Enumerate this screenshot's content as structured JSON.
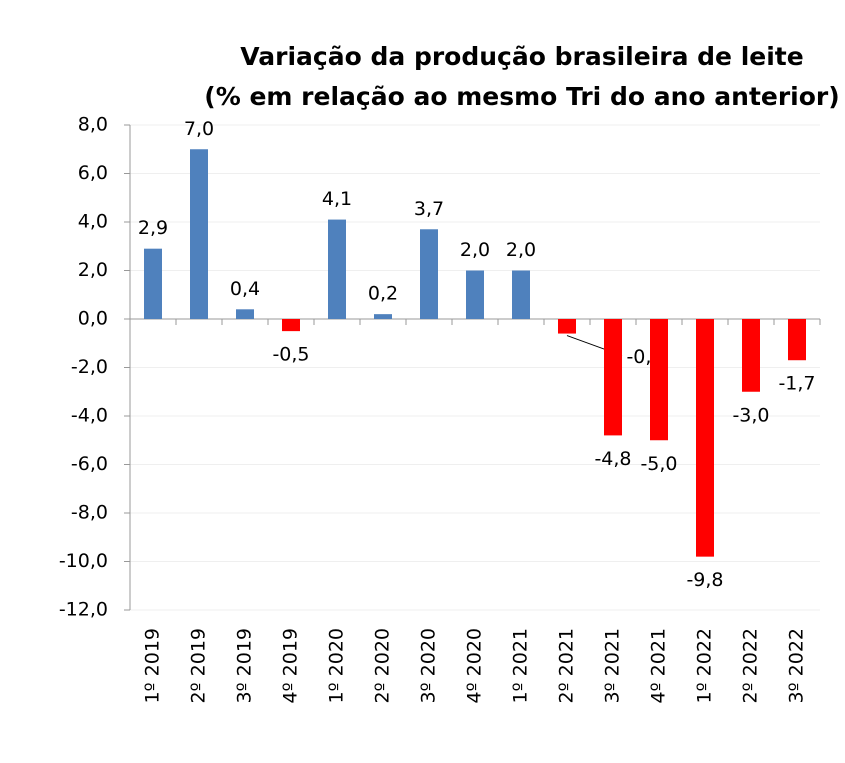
{
  "chart_data": {
    "type": "bar",
    "title": "Variação da produção brasileira de leite",
    "subtitle": "(% em relação ao mesmo Tri do ano anterior)",
    "categories": [
      "1º 2019",
      "2º 2019",
      "3º 2019",
      "4º 2019",
      "1º 2020",
      "2º 2020",
      "3º 2020",
      "4º 2020",
      "1º 2021",
      "2º 2021",
      "3º 2021",
      "4º 2021",
      "1º 2022",
      "2º 2022",
      "3º 2022"
    ],
    "values": [
      2.9,
      7.0,
      0.4,
      -0.5,
      4.1,
      0.2,
      3.7,
      2.0,
      2.0,
      -0.6,
      -4.8,
      -5.0,
      -9.8,
      -3.0,
      -1.7
    ],
    "value_labels": [
      "2,9",
      "7,0",
      "0,4",
      "-0,5",
      "4,1",
      "0,2",
      "3,7",
      "2,0",
      "2,0",
      "-0,6",
      "-4,8",
      "-5,0",
      "-9,8",
      "-3,0",
      "-1,7"
    ],
    "color": "#4f81bd",
    "negative_color": "#ff0000",
    "ylim": [
      -12,
      8
    ],
    "yticks": [
      {
        "value": -12,
        "label": "-12,0"
      },
      {
        "value": -10,
        "label": "-10,0"
      },
      {
        "value": -8,
        "label": "-8,0"
      },
      {
        "value": -6,
        "label": "-6,0"
      },
      {
        "value": -4,
        "label": "-4,0"
      },
      {
        "value": -2,
        "label": "-2,0"
      },
      {
        "value": 0,
        "label": "0,0"
      },
      {
        "value": 2,
        "label": "2,0"
      },
      {
        "value": 4,
        "label": "4,0"
      },
      {
        "value": 6,
        "label": "6,0"
      },
      {
        "value": 8,
        "label": "8,0"
      }
    ],
    "grid": true
  }
}
